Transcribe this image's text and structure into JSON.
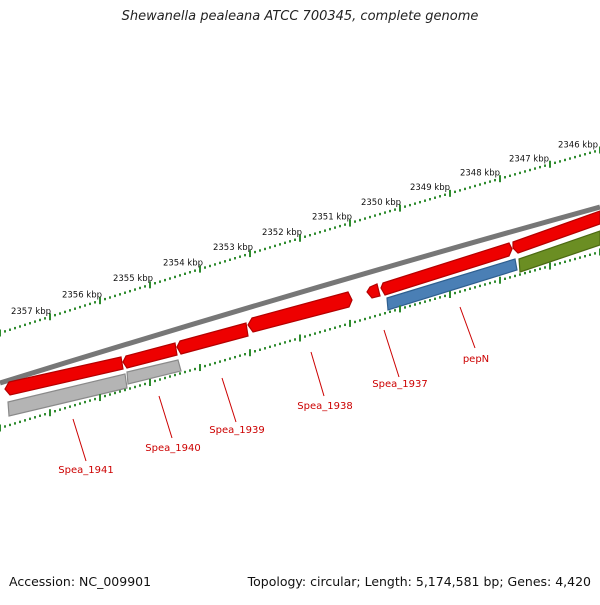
{
  "title": "Shewanella pealeana ATCC 700345, complete genome",
  "footer": {
    "accession": "Accession: NC_009901",
    "topology": "Topology: circular; Length: 5,174,581 bp; Genes: 4,420"
  },
  "colors": {
    "backbone": "#777777",
    "tick": "#2e8b2e",
    "gene_red": "#ee0000",
    "gene_grey": "#b4b4b4",
    "gene_blue": "#4a7fb5",
    "gene_green": "#6b8e23",
    "label": "#cc0000",
    "kbp_text": "#111111"
  },
  "kbp_labels": [
    "2346 kbp",
    "2347 kbp",
    "2348 kbp",
    "2349 kbp",
    "2350 kbp",
    "2351 kbp",
    "2352 kbp",
    "2353 kbp",
    "2354 kbp",
    "2355 kbp",
    "2356 kbp",
    "2357 kbp"
  ],
  "genes": [
    {
      "id": "seg-right",
      "label": "",
      "color": "gene_red",
      "strand": "forward"
    },
    {
      "id": "seg-right-green",
      "label": "",
      "color": "gene_green",
      "strand": "reverse"
    },
    {
      "id": "spea-1937",
      "label": "Spea_1937",
      "color": "gene_red",
      "strand": "forward"
    },
    {
      "id": "pepn",
      "label": "pepN",
      "color": "gene_blue",
      "strand": "reverse"
    },
    {
      "id": "small-red",
      "label": "",
      "color": "gene_red",
      "strand": "forward"
    },
    {
      "id": "spea-1938",
      "label": "Spea_1938",
      "color": "gene_red",
      "strand": "forward"
    },
    {
      "id": "spea-1939",
      "label": "Spea_1939",
      "color": "gene_red",
      "strand": "forward"
    },
    {
      "id": "spea-1940",
      "label": "Spea_1940",
      "color": "gene_red",
      "strand": "forward"
    },
    {
      "id": "spea-1940-grey",
      "label": "",
      "color": "gene_grey",
      "strand": "reverse"
    },
    {
      "id": "spea-1941",
      "label": "Spea_1941",
      "color": "gene_red",
      "strand": "forward"
    },
    {
      "id": "spea-1941-grey",
      "label": "",
      "color": "gene_grey",
      "strand": "reverse"
    }
  ]
}
